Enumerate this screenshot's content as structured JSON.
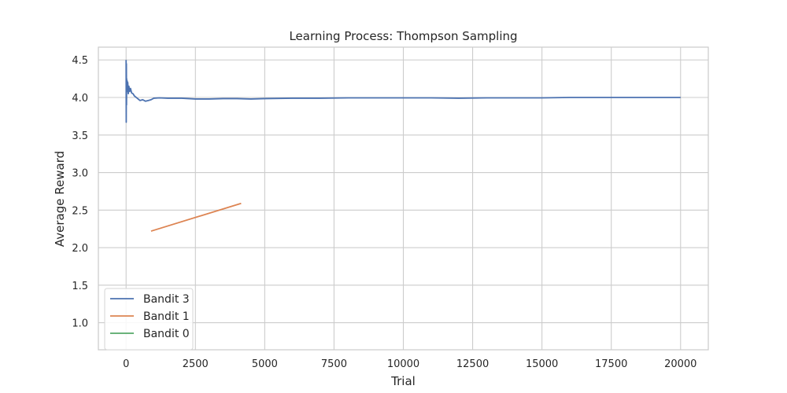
{
  "chart_data": {
    "type": "line",
    "title": "Learning Process: Thompson Sampling",
    "xlabel": "Trial",
    "ylabel": "Average Reward",
    "xlim": [
      -1000,
      21000
    ],
    "ylim": [
      0.64,
      4.67
    ],
    "xticks": [
      0,
      2500,
      5000,
      7500,
      10000,
      12500,
      15000,
      17500,
      20000
    ],
    "xtick_labels": [
      "0",
      "2500",
      "5000",
      "7500",
      "10000",
      "12500",
      "15000",
      "17500",
      "20000"
    ],
    "yticks": [
      1.0,
      1.5,
      2.0,
      2.5,
      3.0,
      3.5,
      4.0,
      4.5
    ],
    "ytick_labels": [
      "1.0",
      "1.5",
      "2.0",
      "2.5",
      "3.0",
      "3.5",
      "4.0",
      "4.5"
    ],
    "grid": true,
    "legend_position": "lower-left",
    "series": [
      {
        "name": "Bandit 3",
        "color": "#4c72b0",
        "x": [
          0,
          5,
          10,
          15,
          20,
          30,
          40,
          50,
          60,
          80,
          100,
          130,
          160,
          200,
          250,
          300,
          400,
          500,
          600,
          700,
          800,
          900,
          1000,
          1200,
          1500,
          2000,
          2500,
          3000,
          3500,
          4000,
          4500,
          5000,
          6000,
          7000,
          8000,
          9000,
          10000,
          11000,
          12000,
          13000,
          14000,
          15000,
          16000,
          17000,
          18000,
          19000,
          20000
        ],
        "y": [
          4.5,
          3.67,
          4.45,
          3.9,
          4.25,
          4.1,
          4.22,
          4.08,
          4.2,
          4.05,
          4.15,
          4.08,
          4.12,
          4.06,
          4.05,
          4.02,
          3.99,
          3.96,
          3.97,
          3.95,
          3.96,
          3.97,
          3.99,
          3.995,
          3.99,
          3.99,
          3.98,
          3.98,
          3.985,
          3.985,
          3.98,
          3.985,
          3.99,
          3.99,
          3.995,
          3.995,
          3.995,
          3.995,
          3.99,
          3.995,
          3.995,
          3.995,
          4.0,
          4.0,
          4.0,
          4.0,
          4.0
        ]
      },
      {
        "name": "Bandit 1",
        "color": "#dd8452",
        "x": [
          900,
          4150
        ],
        "y": [
          2.22,
          2.59
        ]
      },
      {
        "name": "Bandit 0",
        "color": "#55a868",
        "x": [],
        "y": []
      }
    ]
  }
}
